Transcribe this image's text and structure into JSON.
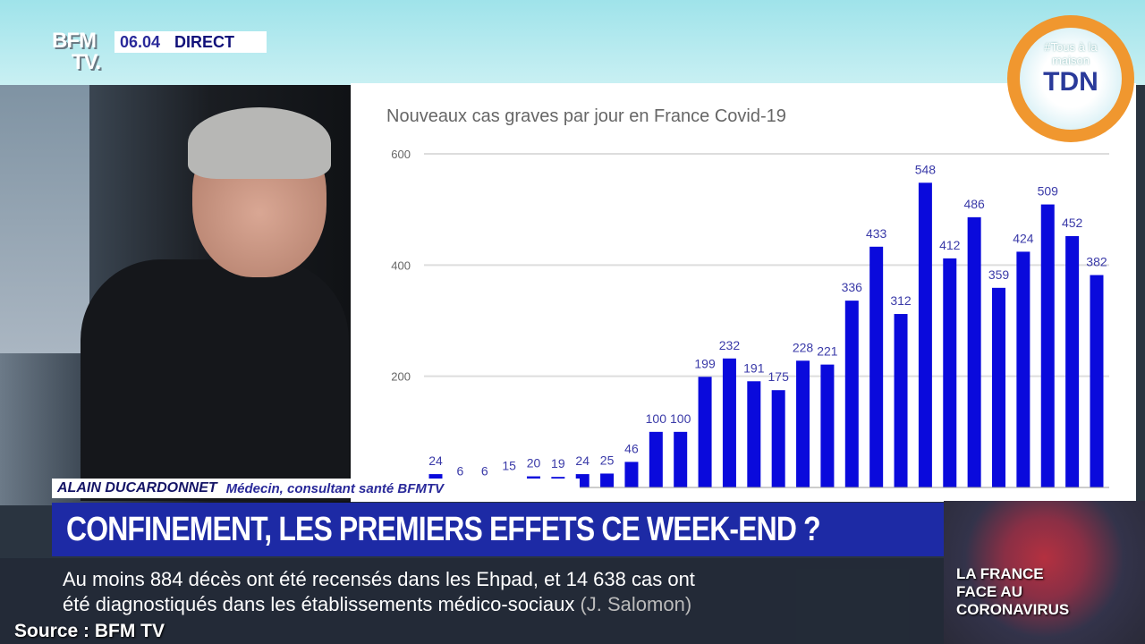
{
  "broadcast": {
    "channel_logo": "BFM TV",
    "time": "06.04",
    "live_label": "DIRECT",
    "corner_logo": {
      "top": "#Tous à la maison",
      "main": "TDN"
    },
    "speaker_name": "ALAIN DUCARDONNET",
    "speaker_role": "Médecin, consultant santé BFMTV",
    "headline": "CONFINEMENT, LES PREMIERS EFFETS CE WEEK-END ?",
    "ticker_line1": "Au moins 884 décès ont été recensés dans les Ehpad, et 14 638 cas ont",
    "ticker_line2": "été diagnostiqués dans les établissements médico-sociaux",
    "ticker_attribution": "(J. Salomon)",
    "source": "Source : BFM TV",
    "program_label": [
      "LA FRANCE",
      "FACE AU",
      "CORONAVIRUS"
    ]
  },
  "chart_data": {
    "type": "bar",
    "title": "Nouveaux cas graves par jour en France Covid-19",
    "values": [
      24,
      6,
      6,
      15,
      20,
      19,
      24,
      25,
      46,
      100,
      100,
      199,
      232,
      191,
      175,
      228,
      221,
      336,
      433,
      312,
      548,
      412,
      486,
      359,
      424,
      509,
      452,
      382
    ],
    "ylim": [
      0,
      600
    ],
    "yticks": [
      200,
      400,
      600
    ],
    "grid": true,
    "bar_color": "#0a0adc",
    "label_color": "#3a3aa8"
  }
}
